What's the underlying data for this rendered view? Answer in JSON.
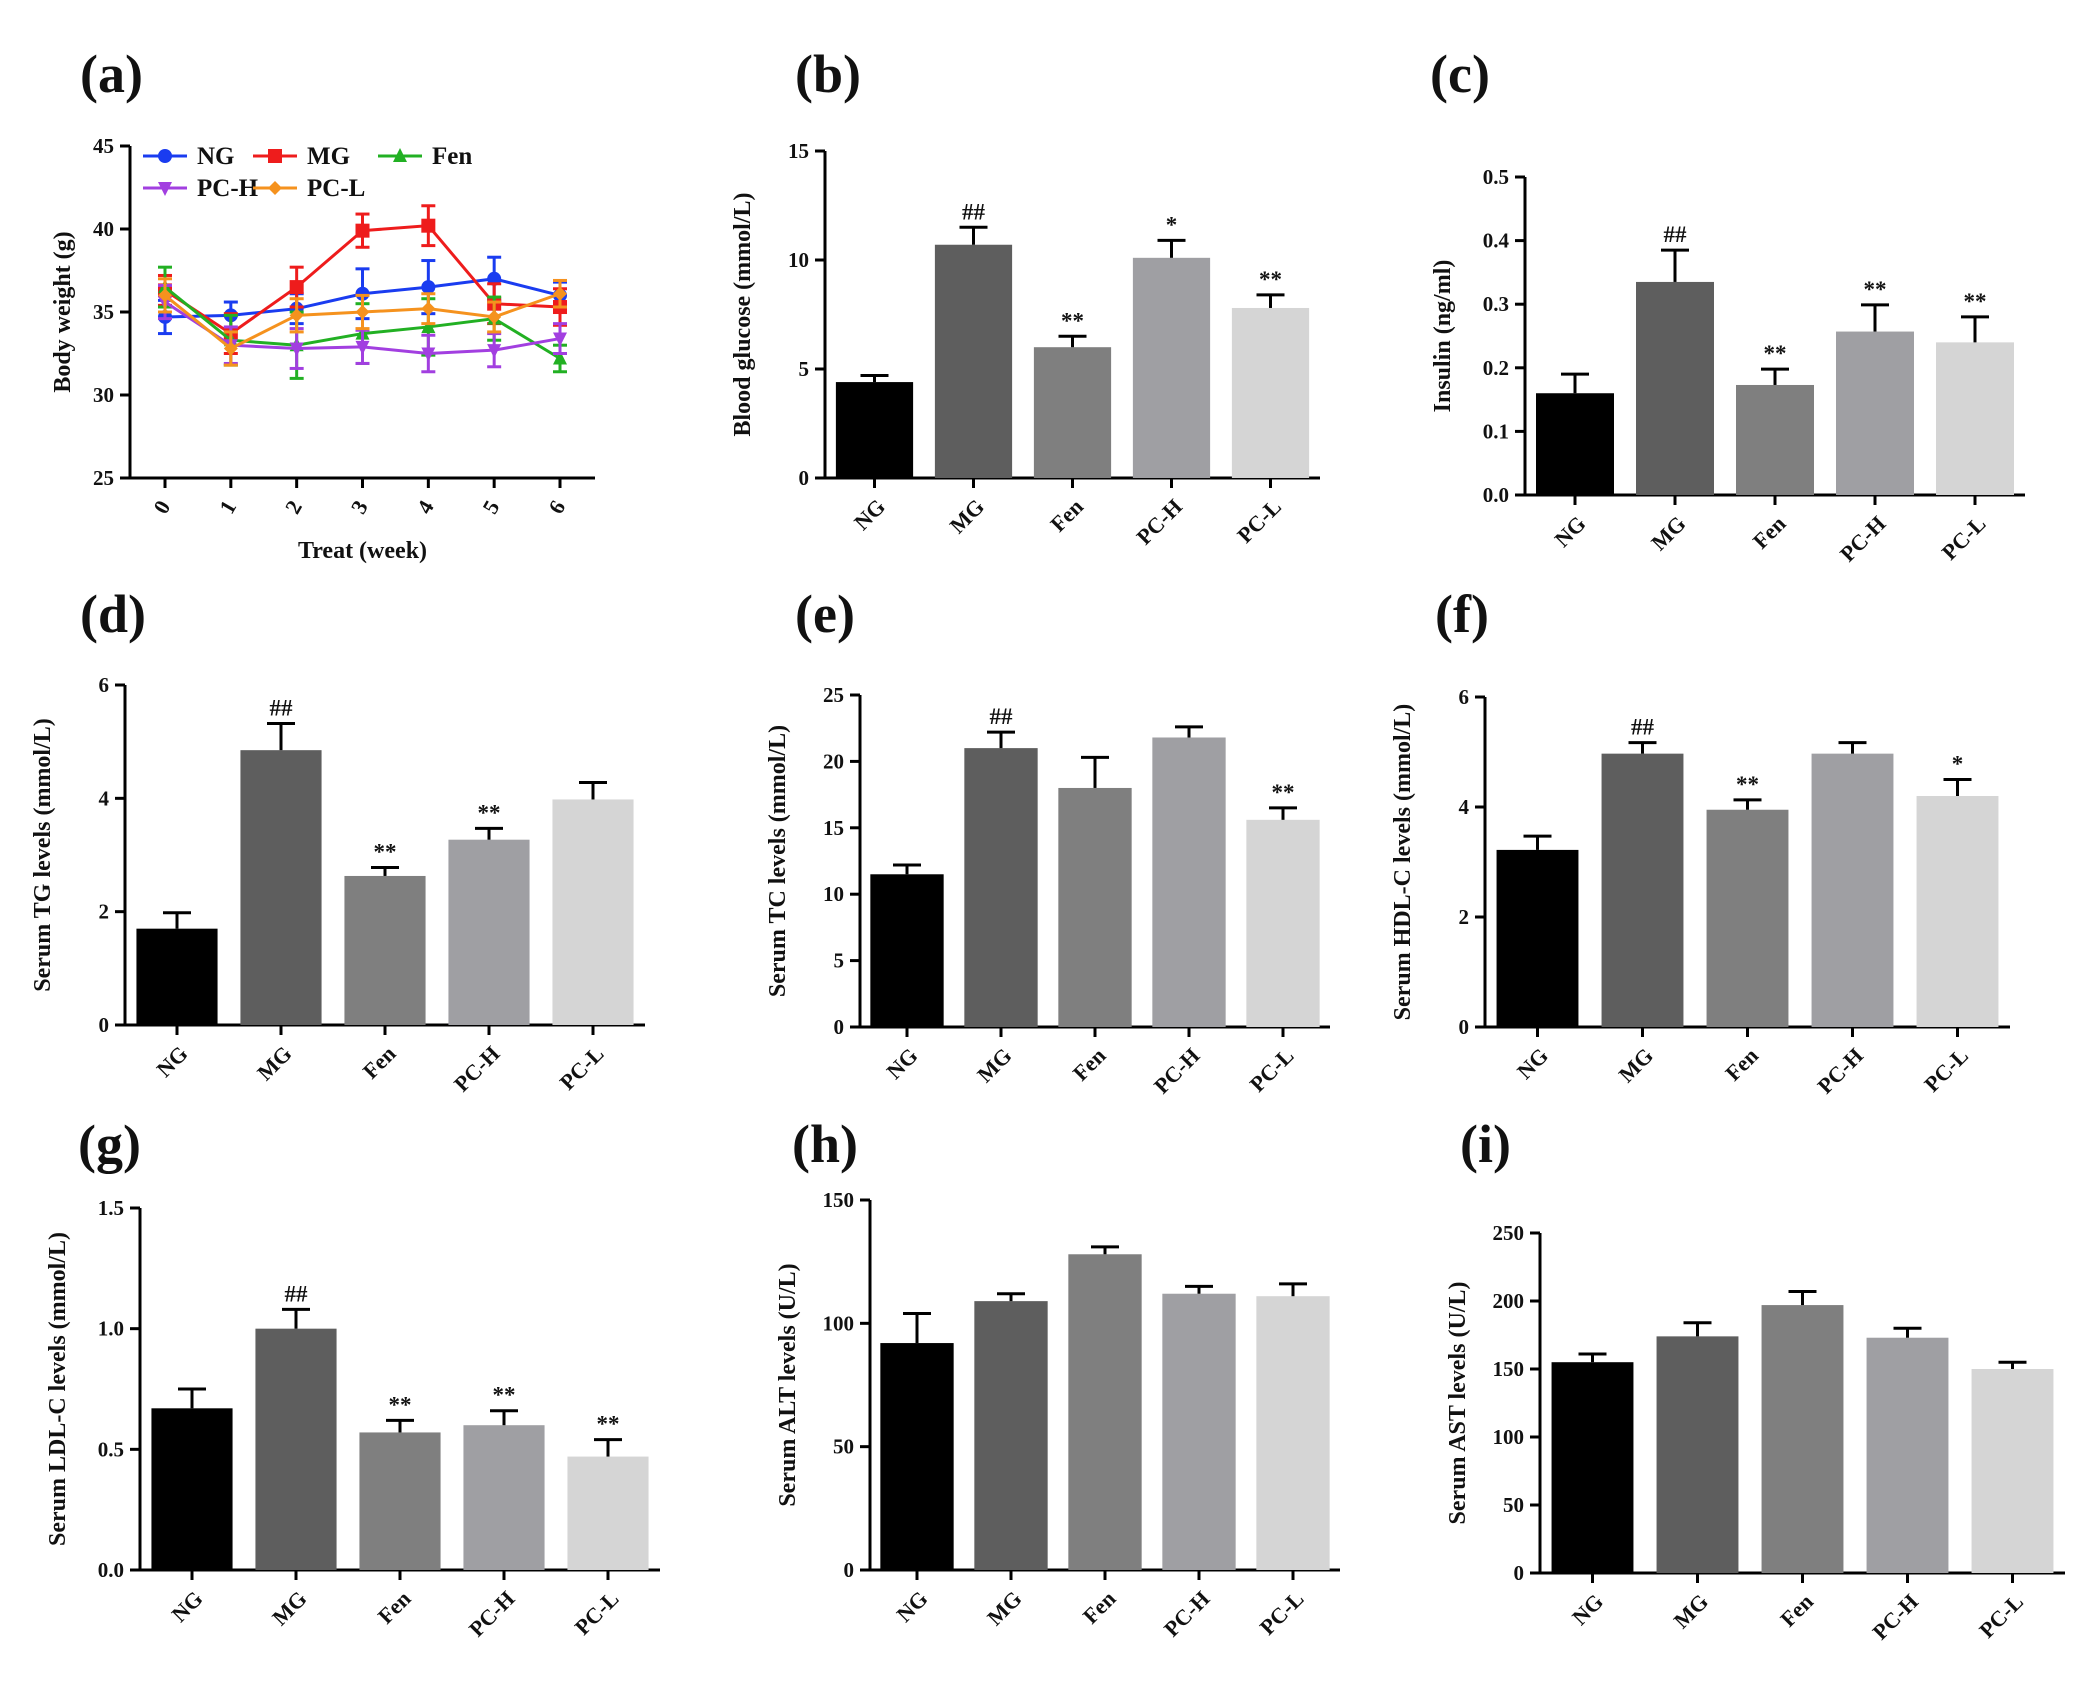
{
  "figure": {
    "colors": {
      "NG": "#000000",
      "MG": "#5e5e5e",
      "Fen": "#7f7f7f",
      "PC-H": "#9f9fa3",
      "PC-L": "#d5d5d5"
    },
    "line_colors": {
      "NG": "#1a3cf0",
      "MG": "#ee1c1c",
      "Fen": "#22b023",
      "PC-H": "#a23fe0",
      "PC-L": "#f5921e"
    }
  },
  "chart_data": [
    {
      "id": "a",
      "panel_label": "(a)",
      "type": "line",
      "xlabel": "Treat (week)",
      "ylabel": "Body weight (g)",
      "x": [
        0,
        1,
        2,
        3,
        4,
        5,
        6
      ],
      "x_tick_labels": [
        "0",
        "1",
        "2",
        "3",
        "4",
        "5",
        "6"
      ],
      "ylim": [
        25,
        45
      ],
      "yticks": [
        25,
        30,
        35,
        40,
        45
      ],
      "legend": "top-left",
      "legend_entries": [
        "NG",
        "MG",
        "Fen",
        "PC-H",
        "PC-L"
      ],
      "series": [
        {
          "name": "NG",
          "marker": "circle",
          "values": [
            34.7,
            34.8,
            35.2,
            36.1,
            36.5,
            37.0,
            36.0
          ],
          "errors": [
            1.0,
            0.8,
            0.9,
            1.5,
            1.6,
            1.3,
            0.8
          ]
        },
        {
          "name": "MG",
          "marker": "square",
          "values": [
            36.3,
            33.7,
            36.5,
            39.9,
            40.2,
            35.5,
            35.3
          ],
          "errors": [
            0.9,
            1.2,
            1.2,
            1.0,
            1.2,
            1.2,
            1.1
          ]
        },
        {
          "name": "Fen",
          "marker": "triangle-up",
          "values": [
            36.5,
            33.3,
            33.0,
            33.7,
            34.1,
            34.6,
            32.2
          ],
          "errors": [
            1.2,
            1.5,
            2.0,
            1.8,
            1.7,
            1.3,
            0.8
          ]
        },
        {
          "name": "PC-H",
          "marker": "triangle-down",
          "values": [
            35.6,
            33.0,
            32.8,
            32.9,
            32.5,
            32.7,
            33.4
          ],
          "errors": [
            1.0,
            1.1,
            1.2,
            1.0,
            1.1,
            1.0,
            0.9
          ]
        },
        {
          "name": "PC-L",
          "marker": "diamond",
          "values": [
            36.0,
            32.8,
            34.8,
            35.0,
            35.2,
            34.7,
            36.1
          ],
          "errors": [
            1.0,
            1.0,
            1.0,
            1.0,
            0.9,
            0.9,
            0.8
          ]
        }
      ]
    },
    {
      "id": "b",
      "panel_label": "(b)",
      "type": "bar",
      "ylabel": "Blood glucose (mmol/L)",
      "categories": [
        "NG",
        "MG",
        "Fen",
        "PC-H",
        "PC-L"
      ],
      "values": [
        4.4,
        10.7,
        6.0,
        10.1,
        7.8
      ],
      "errors": [
        0.3,
        0.8,
        0.5,
        0.8,
        0.6
      ],
      "significance": [
        "",
        "##",
        "**",
        "*",
        "**"
      ],
      "ylim": [
        0,
        15
      ],
      "yticks": [
        0,
        5,
        10,
        15
      ]
    },
    {
      "id": "c",
      "panel_label": "(c)",
      "type": "bar",
      "ylabel": "Insulin (ng/ml)",
      "categories": [
        "NG",
        "MG",
        "Fen",
        "PC-H",
        "PC-L"
      ],
      "values": [
        0.16,
        0.335,
        0.173,
        0.257,
        0.24
      ],
      "errors": [
        0.03,
        0.05,
        0.025,
        0.042,
        0.04
      ],
      "significance": [
        "",
        "##",
        "**",
        "**",
        "**"
      ],
      "ylim": [
        0,
        0.5
      ],
      "yticks": [
        0.0,
        0.1,
        0.2,
        0.3,
        0.4,
        0.5
      ],
      "tick_decimals": 1
    },
    {
      "id": "d",
      "panel_label": "(d)",
      "type": "bar",
      "ylabel": "Serum TG levels (mmol/L)",
      "categories": [
        "NG",
        "MG",
        "Fen",
        "PC-H",
        "PC-L"
      ],
      "values": [
        1.7,
        4.85,
        2.63,
        3.27,
        3.98
      ],
      "errors": [
        0.28,
        0.47,
        0.15,
        0.2,
        0.3
      ],
      "significance": [
        "",
        "##",
        "**",
        "**",
        ""
      ],
      "ylim": [
        0,
        6
      ],
      "yticks": [
        0,
        2,
        4,
        6
      ]
    },
    {
      "id": "e",
      "panel_label": "(e)",
      "type": "bar",
      "ylabel": "Serum TC levels (mmol/L)",
      "categories": [
        "NG",
        "MG",
        "Fen",
        "PC-H",
        "PC-L"
      ],
      "values": [
        11.5,
        21.0,
        18.0,
        21.8,
        15.6
      ],
      "errors": [
        0.7,
        1.2,
        2.3,
        0.8,
        0.9
      ],
      "significance": [
        "",
        "##",
        "",
        "",
        "**"
      ],
      "ylim": [
        0,
        25
      ],
      "yticks": [
        0,
        5,
        10,
        15,
        20,
        25
      ]
    },
    {
      "id": "f",
      "panel_label": "(f)",
      "type": "bar",
      "ylabel": "Serum HDL-C levels (mmol/L)",
      "categories": [
        "NG",
        "MG",
        "Fen",
        "PC-H",
        "PC-L"
      ],
      "values": [
        3.22,
        4.97,
        3.95,
        4.97,
        4.2
      ],
      "errors": [
        0.25,
        0.2,
        0.18,
        0.2,
        0.3
      ],
      "significance": [
        "",
        "##",
        "**",
        "",
        "*"
      ],
      "ylim": [
        0,
        6
      ],
      "yticks": [
        0,
        2,
        4,
        6
      ]
    },
    {
      "id": "g",
      "panel_label": "(g)",
      "type": "bar",
      "ylabel": "Serum LDL-C levels (mmol/L)",
      "categories": [
        "NG",
        "MG",
        "Fen",
        "PC-H",
        "PC-L"
      ],
      "values": [
        0.67,
        1.0,
        0.57,
        0.6,
        0.47
      ],
      "errors": [
        0.08,
        0.08,
        0.05,
        0.06,
        0.07
      ],
      "significance": [
        "",
        "##",
        "**",
        "**",
        "**"
      ],
      "ylim": [
        0,
        1.5
      ],
      "yticks": [
        0.0,
        0.5,
        1.0,
        1.5
      ],
      "tick_decimals": 1
    },
    {
      "id": "h",
      "panel_label": "(h)",
      "type": "bar",
      "ylabel": "Serum ALT levels (U/L)",
      "categories": [
        "NG",
        "MG",
        "Fen",
        "PC-H",
        "PC-L"
      ],
      "values": [
        92,
        109,
        128,
        112,
        111
      ],
      "errors": [
        12,
        3,
        3,
        3,
        5
      ],
      "significance": [
        "",
        "",
        "",
        "",
        ""
      ],
      "ylim": [
        0,
        150
      ],
      "yticks": [
        0,
        50,
        100,
        150
      ]
    },
    {
      "id": "i",
      "panel_label": "(i)",
      "type": "bar",
      "ylabel": "Serum AST levels (U/L)",
      "categories": [
        "NG",
        "MG",
        "Fen",
        "PC-H",
        "PC-L"
      ],
      "values": [
        155,
        174,
        197,
        173,
        150
      ],
      "errors": [
        6,
        10,
        10,
        7,
        5
      ],
      "significance": [
        "",
        "",
        "",
        "",
        ""
      ],
      "ylim": [
        0,
        250
      ],
      "yticks": [
        0,
        50,
        100,
        150,
        200,
        250
      ]
    }
  ]
}
